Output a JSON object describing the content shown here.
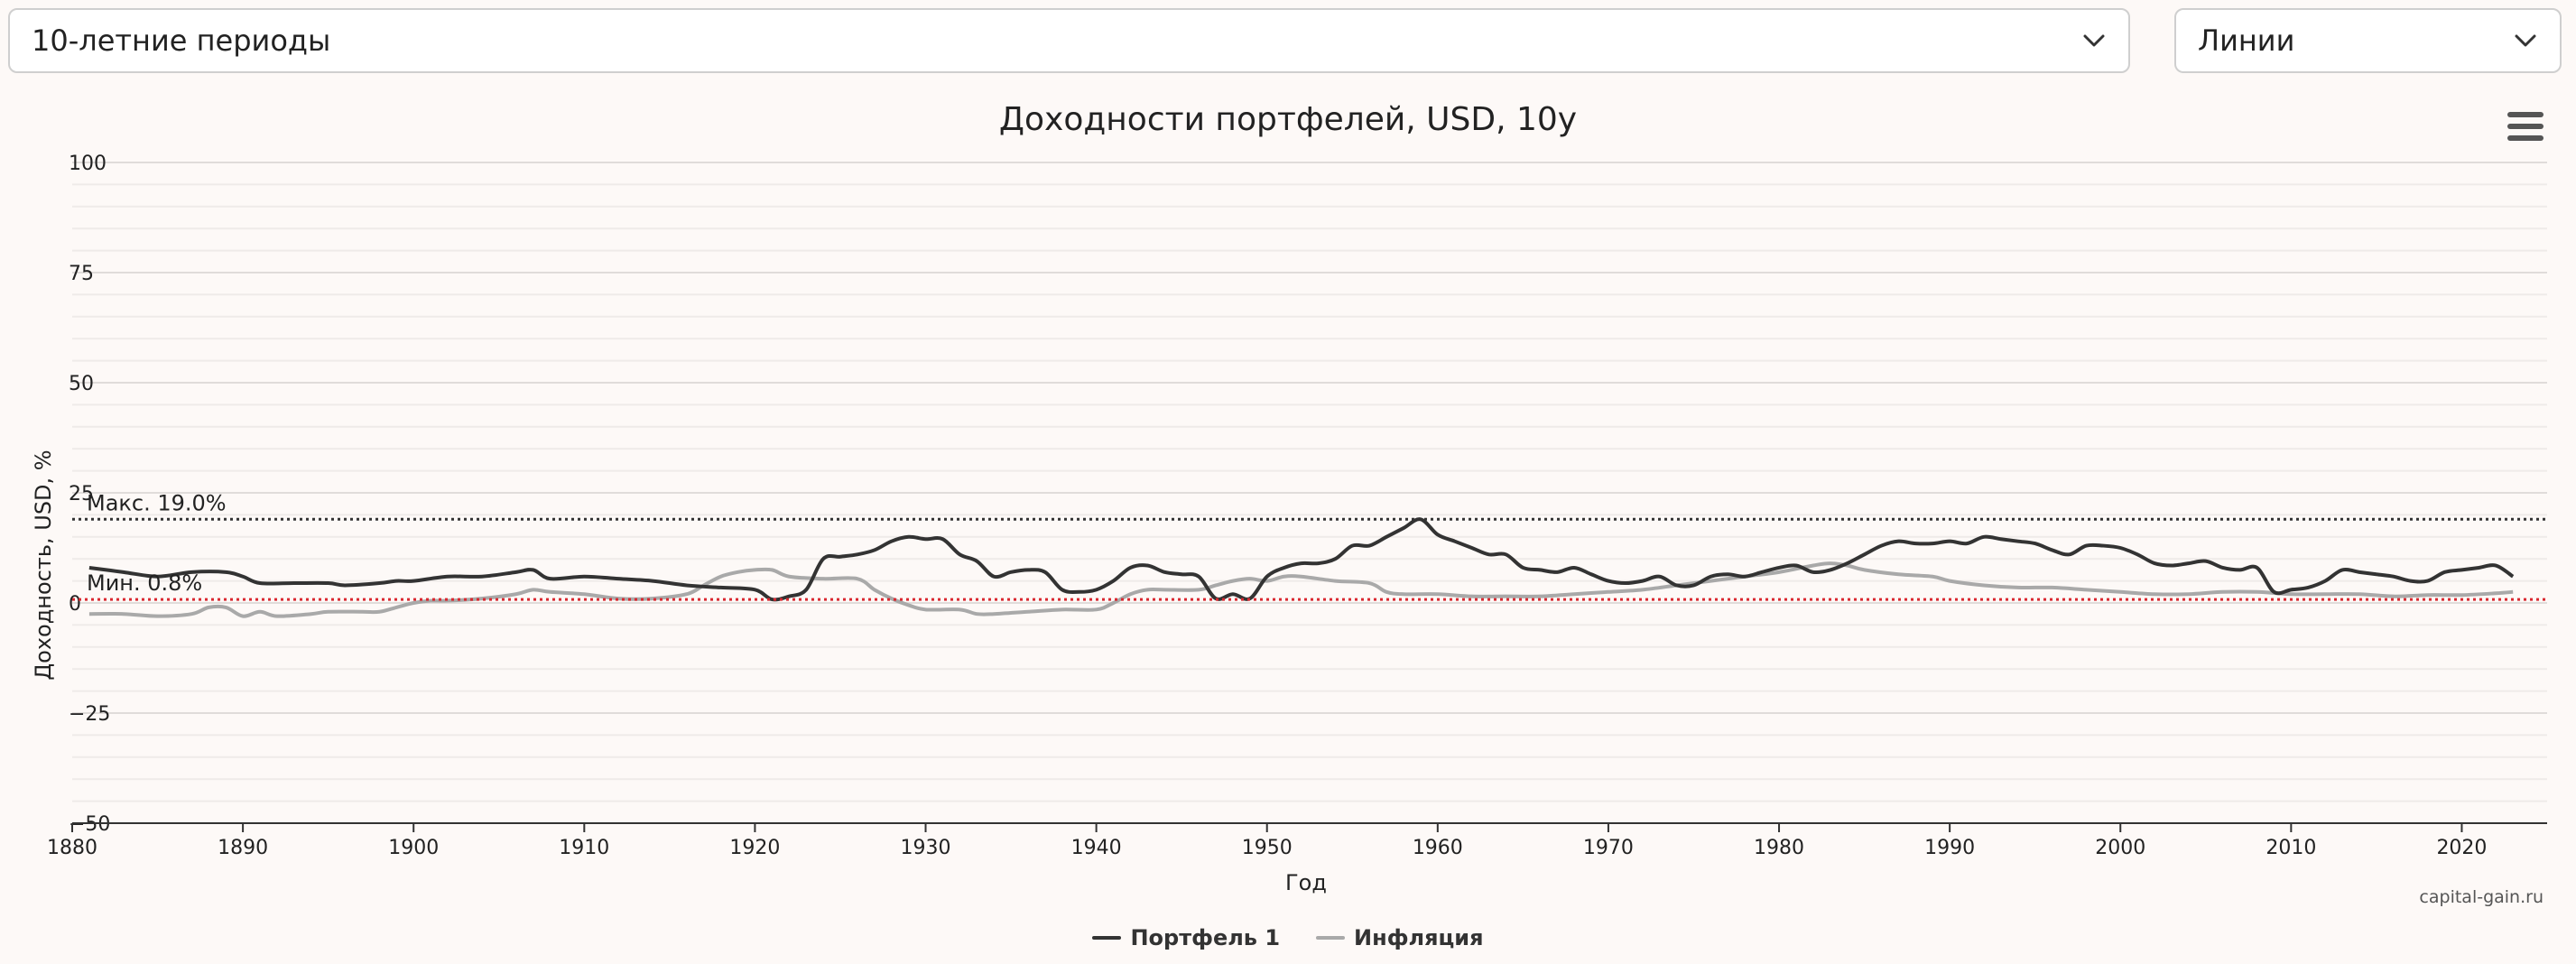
{
  "controls": {
    "period_select": "10-летние периоды",
    "chart_type_select": "Линии"
  },
  "credit": "capital-gain.ru",
  "colors": {
    "portfolio": "#333333",
    "inflation": "#a9a9a9",
    "max_line": "#333333",
    "min_line": "#d9282f",
    "grid": "#e6e6e6"
  },
  "chart_data": {
    "type": "line",
    "title": "Доходности портфелей, USD, 10y",
    "xlabel": "Год",
    "ylabel": "Доходность, USD, %",
    "xlim": [
      1880,
      2025
    ],
    "ylim": [
      -50,
      100
    ],
    "x_ticks": [
      1880,
      1890,
      1900,
      1910,
      1920,
      1930,
      1940,
      1950,
      1960,
      1970,
      1980,
      1990,
      2000,
      2010,
      2020
    ],
    "y_ticks": [
      100,
      75,
      50,
      25,
      0,
      -25,
      -50
    ],
    "grid": true,
    "legend_position": "bottom-center",
    "max_line": {
      "value": 19.0,
      "label": "Макс. 19.0%"
    },
    "min_line": {
      "value": 0.8,
      "label": "Мин. 0.8%"
    },
    "series": [
      {
        "name": "Портфель 1",
        "points": [
          [
            1881,
            8
          ],
          [
            1883,
            7
          ],
          [
            1885,
            6
          ],
          [
            1887,
            7
          ],
          [
            1889,
            7
          ],
          [
            1890,
            6
          ],
          [
            1891,
            4.5
          ],
          [
            1893,
            4.5
          ],
          [
            1895,
            4.5
          ],
          [
            1896,
            4
          ],
          [
            1898,
            4.5
          ],
          [
            1899,
            5
          ],
          [
            1900,
            5
          ],
          [
            1902,
            6
          ],
          [
            1904,
            6
          ],
          [
            1906,
            7
          ],
          [
            1907,
            7.5
          ],
          [
            1908,
            5.5
          ],
          [
            1910,
            6
          ],
          [
            1912,
            5.5
          ],
          [
            1914,
            5
          ],
          [
            1916,
            4
          ],
          [
            1918,
            3.5
          ],
          [
            1920,
            3
          ],
          [
            1921,
            0.8
          ],
          [
            1922,
            1.5
          ],
          [
            1923,
            3
          ],
          [
            1924,
            10
          ],
          [
            1925,
            10.5
          ],
          [
            1926,
            11
          ],
          [
            1927,
            12
          ],
          [
            1928,
            14
          ],
          [
            1929,
            15
          ],
          [
            1930,
            14.5
          ],
          [
            1931,
            14.5
          ],
          [
            1932,
            11
          ],
          [
            1933,
            9.5
          ],
          [
            1934,
            6
          ],
          [
            1935,
            7
          ],
          [
            1936,
            7.5
          ],
          [
            1937,
            7
          ],
          [
            1938,
            3
          ],
          [
            1939,
            2.5
          ],
          [
            1940,
            3
          ],
          [
            1941,
            5
          ],
          [
            1942,
            8
          ],
          [
            1943,
            8.5
          ],
          [
            1944,
            7
          ],
          [
            1945,
            6.5
          ],
          [
            1946,
            6
          ],
          [
            1947,
            1
          ],
          [
            1948,
            2
          ],
          [
            1949,
            1
          ],
          [
            1950,
            6
          ],
          [
            1951,
            8
          ],
          [
            1952,
            9
          ],
          [
            1953,
            9
          ],
          [
            1954,
            10
          ],
          [
            1955,
            13
          ],
          [
            1956,
            13
          ],
          [
            1957,
            15
          ],
          [
            1958,
            17
          ],
          [
            1959,
            19
          ],
          [
            1960,
            15.5
          ],
          [
            1961,
            14
          ],
          [
            1962,
            12.5
          ],
          [
            1963,
            11
          ],
          [
            1964,
            11
          ],
          [
            1965,
            8
          ],
          [
            1966,
            7.5
          ],
          [
            1967,
            7
          ],
          [
            1968,
            8
          ],
          [
            1969,
            6.5
          ],
          [
            1970,
            5
          ],
          [
            1971,
            4.5
          ],
          [
            1972,
            5
          ],
          [
            1973,
            6
          ],
          [
            1974,
            4
          ],
          [
            1975,
            4
          ],
          [
            1976,
            6
          ],
          [
            1977,
            6.5
          ],
          [
            1978,
            6
          ],
          [
            1979,
            7
          ],
          [
            1980,
            8
          ],
          [
            1981,
            8.5
          ],
          [
            1982,
            7
          ],
          [
            1983,
            7.5
          ],
          [
            1984,
            9
          ],
          [
            1985,
            11
          ],
          [
            1986,
            13
          ],
          [
            1987,
            14
          ],
          [
            1988,
            13.5
          ],
          [
            1989,
            13.5
          ],
          [
            1990,
            14
          ],
          [
            1991,
            13.5
          ],
          [
            1992,
            15
          ],
          [
            1993,
            14.5
          ],
          [
            1994,
            14
          ],
          [
            1995,
            13.5
          ],
          [
            1996,
            12
          ],
          [
            1997,
            11
          ],
          [
            1998,
            13
          ],
          [
            1999,
            13
          ],
          [
            2000,
            12.5
          ],
          [
            2001,
            11
          ],
          [
            2002,
            9
          ],
          [
            2003,
            8.5
          ],
          [
            2004,
            9
          ],
          [
            2005,
            9.5
          ],
          [
            2006,
            8
          ],
          [
            2007,
            7.5
          ],
          [
            2008,
            8
          ],
          [
            2009,
            2.5
          ],
          [
            2010,
            3
          ],
          [
            2011,
            3.5
          ],
          [
            2012,
            5
          ],
          [
            2013,
            7.5
          ],
          [
            2014,
            7
          ],
          [
            2015,
            6.5
          ],
          [
            2016,
            6
          ],
          [
            2017,
            5
          ],
          [
            2018,
            5
          ],
          [
            2019,
            7
          ],
          [
            2020,
            7.5
          ],
          [
            2021,
            8
          ],
          [
            2022,
            8.5
          ],
          [
            2023,
            6
          ]
        ]
      },
      {
        "name": "Инфляция",
        "points": [
          [
            1881,
            -2.5
          ],
          [
            1883,
            -2.5
          ],
          [
            1885,
            -3
          ],
          [
            1887,
            -2.5
          ],
          [
            1888,
            -1
          ],
          [
            1889,
            -1
          ],
          [
            1890,
            -3
          ],
          [
            1891,
            -2
          ],
          [
            1892,
            -3
          ],
          [
            1894,
            -2.5
          ],
          [
            1895,
            -2
          ],
          [
            1897,
            -2
          ],
          [
            1898,
            -2
          ],
          [
            1899,
            -1
          ],
          [
            1900,
            0
          ],
          [
            1901,
            0.5
          ],
          [
            1902,
            0.5
          ],
          [
            1904,
            1
          ],
          [
            1906,
            2
          ],
          [
            1907,
            3
          ],
          [
            1908,
            2.5
          ],
          [
            1910,
            2
          ],
          [
            1912,
            1
          ],
          [
            1914,
            1
          ],
          [
            1916,
            2
          ],
          [
            1917,
            4
          ],
          [
            1918,
            6
          ],
          [
            1919,
            7
          ],
          [
            1920,
            7.5
          ],
          [
            1921,
            7.5
          ],
          [
            1922,
            6
          ],
          [
            1924,
            5.5
          ],
          [
            1926,
            5.5
          ],
          [
            1927,
            3
          ],
          [
            1928,
            1
          ],
          [
            1929,
            -0.5
          ],
          [
            1930,
            -1.5
          ],
          [
            1932,
            -1.5
          ],
          [
            1933,
            -2.5
          ],
          [
            1934,
            -2.5
          ],
          [
            1936,
            -2
          ],
          [
            1938,
            -1.5
          ],
          [
            1940,
            -1.5
          ],
          [
            1941,
            0
          ],
          [
            1942,
            2
          ],
          [
            1943,
            3
          ],
          [
            1944,
            3
          ],
          [
            1946,
            3
          ],
          [
            1947,
            4
          ],
          [
            1948,
            5
          ],
          [
            1949,
            5.5
          ],
          [
            1950,
            5
          ],
          [
            1951,
            6
          ],
          [
            1952,
            6
          ],
          [
            1954,
            5
          ],
          [
            1956,
            4.5
          ],
          [
            1957,
            2.5
          ],
          [
            1958,
            2
          ],
          [
            1960,
            2
          ],
          [
            1962,
            1.5
          ],
          [
            1964,
            1.5
          ],
          [
            1966,
            1.5
          ],
          [
            1968,
            2
          ],
          [
            1970,
            2.5
          ],
          [
            1972,
            3
          ],
          [
            1974,
            4
          ],
          [
            1976,
            5
          ],
          [
            1978,
            6
          ],
          [
            1980,
            7
          ],
          [
            1982,
            8.5
          ],
          [
            1983,
            9
          ],
          [
            1984,
            8.5
          ],
          [
            1985,
            7.5
          ],
          [
            1987,
            6.5
          ],
          [
            1989,
            6
          ],
          [
            1990,
            5
          ],
          [
            1992,
            4
          ],
          [
            1994,
            3.5
          ],
          [
            1996,
            3.5
          ],
          [
            1998,
            3
          ],
          [
            2000,
            2.5
          ],
          [
            2002,
            2
          ],
          [
            2004,
            2
          ],
          [
            2006,
            2.5
          ],
          [
            2008,
            2.5
          ],
          [
            2010,
            2
          ],
          [
            2012,
            2
          ],
          [
            2014,
            2
          ],
          [
            2016,
            1.5
          ],
          [
            2018,
            1.8
          ],
          [
            2020,
            1.8
          ],
          [
            2022,
            2.2
          ],
          [
            2023,
            2.5
          ]
        ]
      }
    ]
  }
}
